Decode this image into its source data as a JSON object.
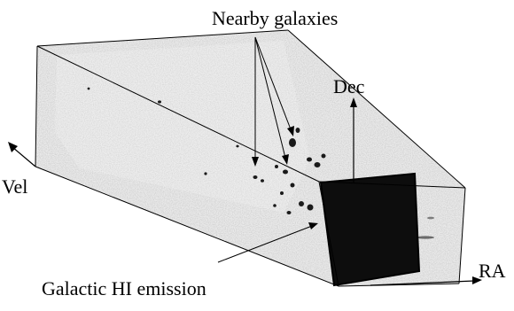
{
  "labels": {
    "nearby_galaxies": "Nearby galaxies",
    "dec": "Dec",
    "vel": "Vel",
    "ra": "RA",
    "galactic_hi": "Galactic HI emission"
  },
  "colors": {
    "ink": "#000000",
    "cube_fill": "#cfcfcf",
    "dark_slab": "#0d0d0d"
  }
}
